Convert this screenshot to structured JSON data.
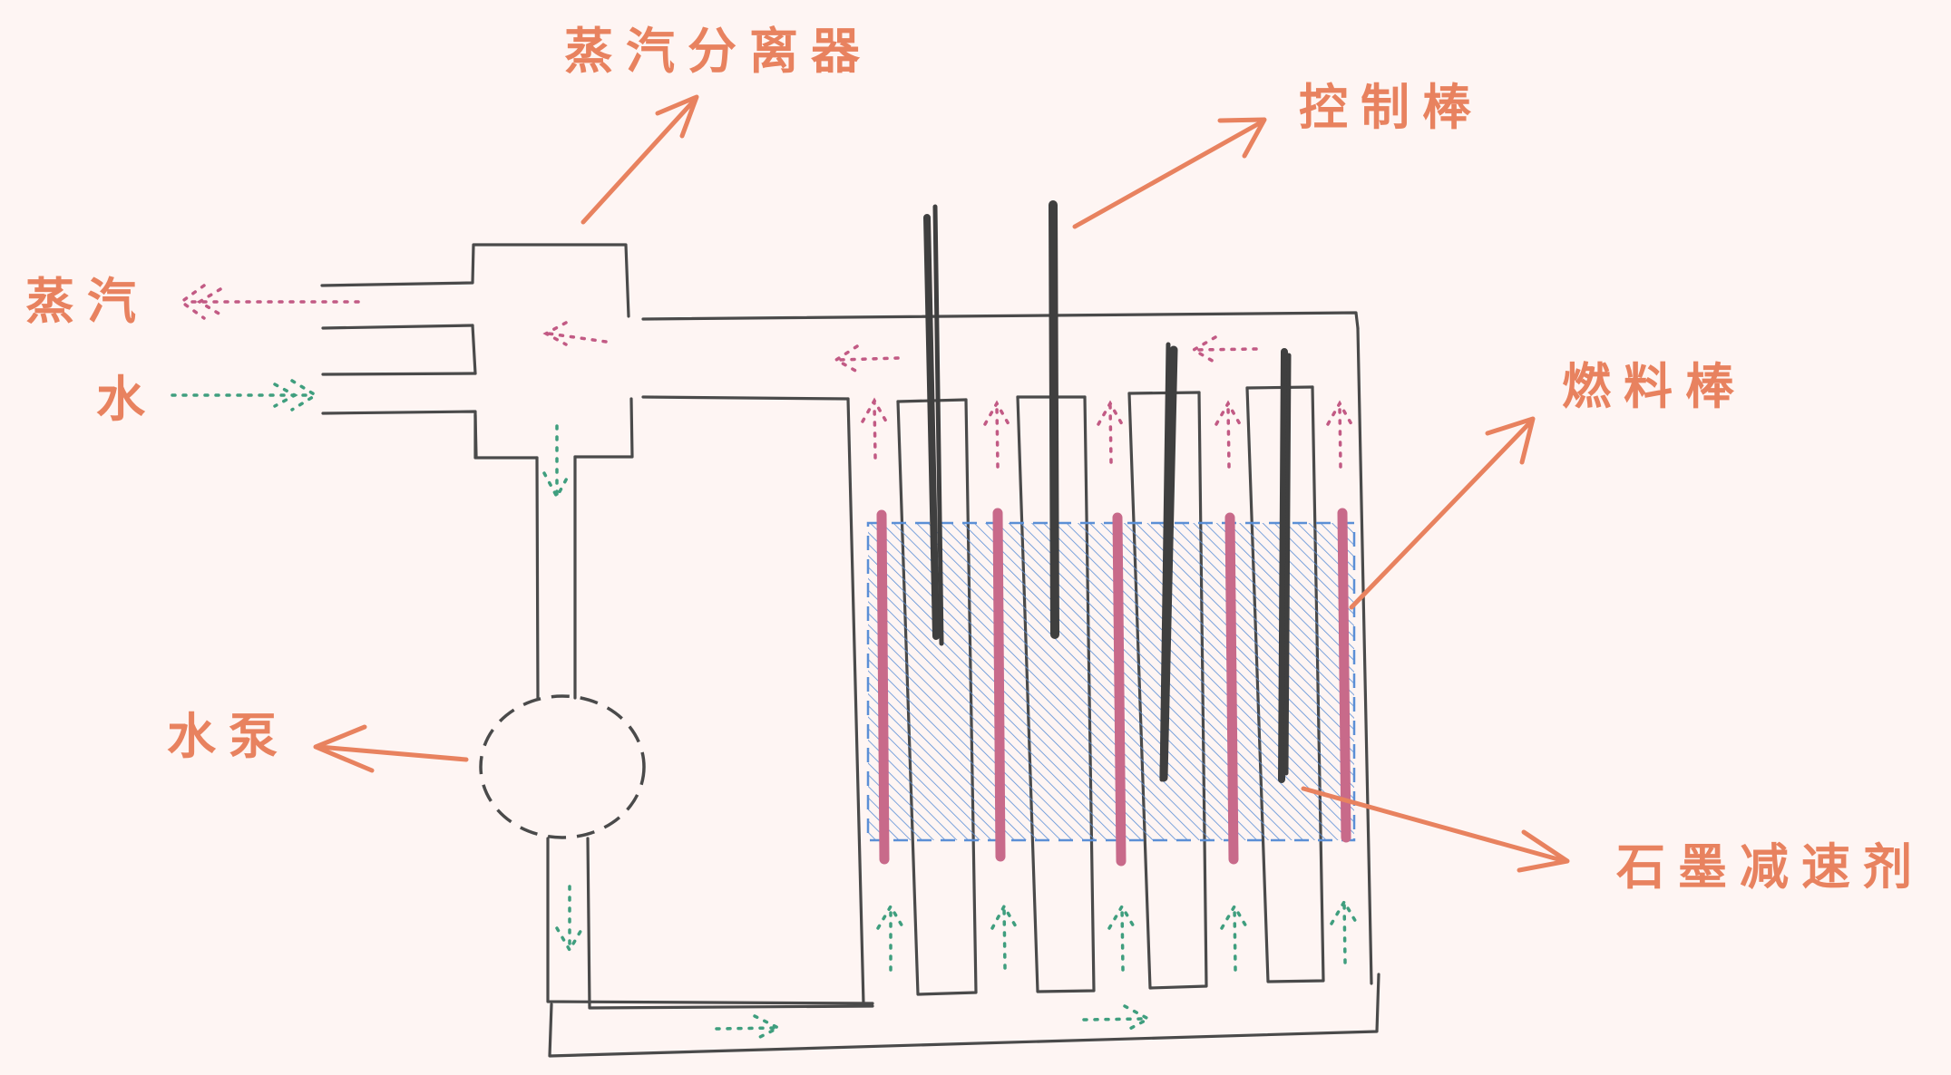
{
  "labels": {
    "steam_separator": "蒸汽分离器",
    "control_rod": "控制棒",
    "steam": "蒸汽",
    "water": "水",
    "fuel_rod": "燃料棒",
    "water_pump": "水泵",
    "graphite_moderator": "石墨减速剂"
  },
  "colors": {
    "background": "#fef5f3",
    "label": "#e8825f",
    "pipe": "#4a4a4a",
    "fuel_rod": "#c86a8a",
    "moderator": "#5b8fd6",
    "steam_flow": "#c25a84",
    "water_flow": "#3f9e7e"
  }
}
